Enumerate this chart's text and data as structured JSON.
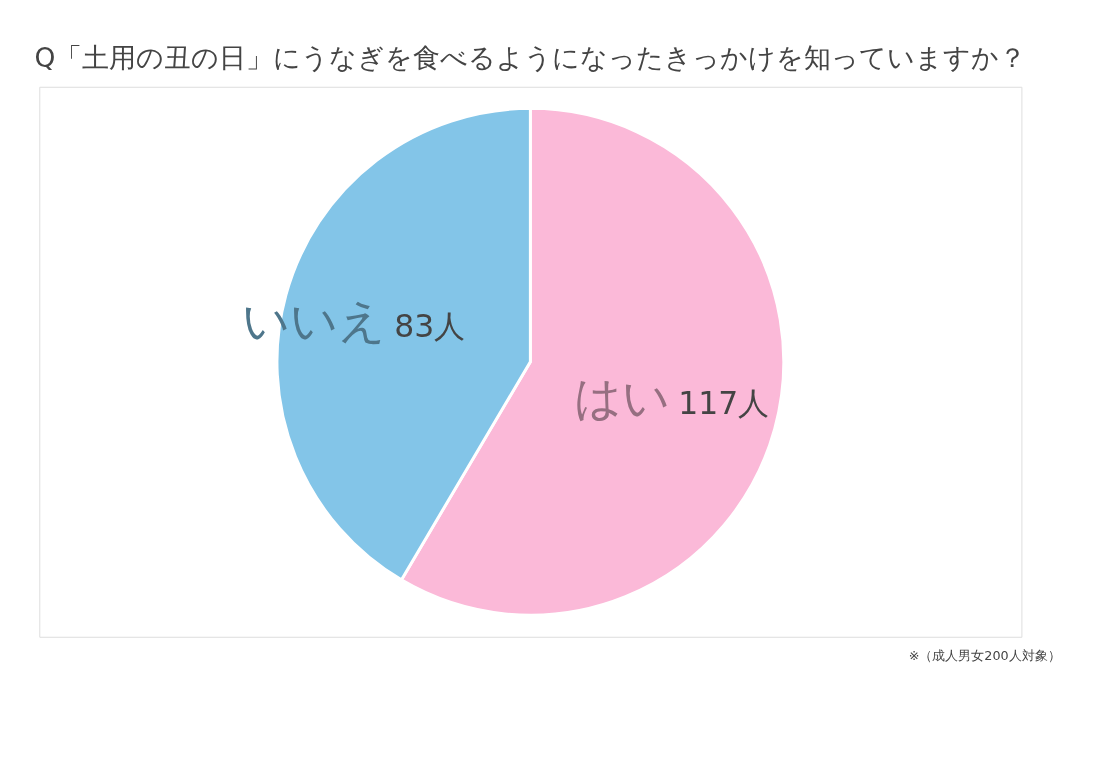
{
  "chart_data": {
    "type": "pie",
    "title": "Q「土用の丑の日」にうなぎを食べるようになったきっかけを知っていますか？",
    "categories": [
      "はい",
      "いいえ"
    ],
    "values": [
      117,
      83
    ],
    "colors": [
      "#fbb9d8",
      "#83c5e8"
    ],
    "value_labels": [
      "117人",
      "83人"
    ],
    "legend": false,
    "annotations": [
      "※（成人男女200人対象）"
    ]
  }
}
